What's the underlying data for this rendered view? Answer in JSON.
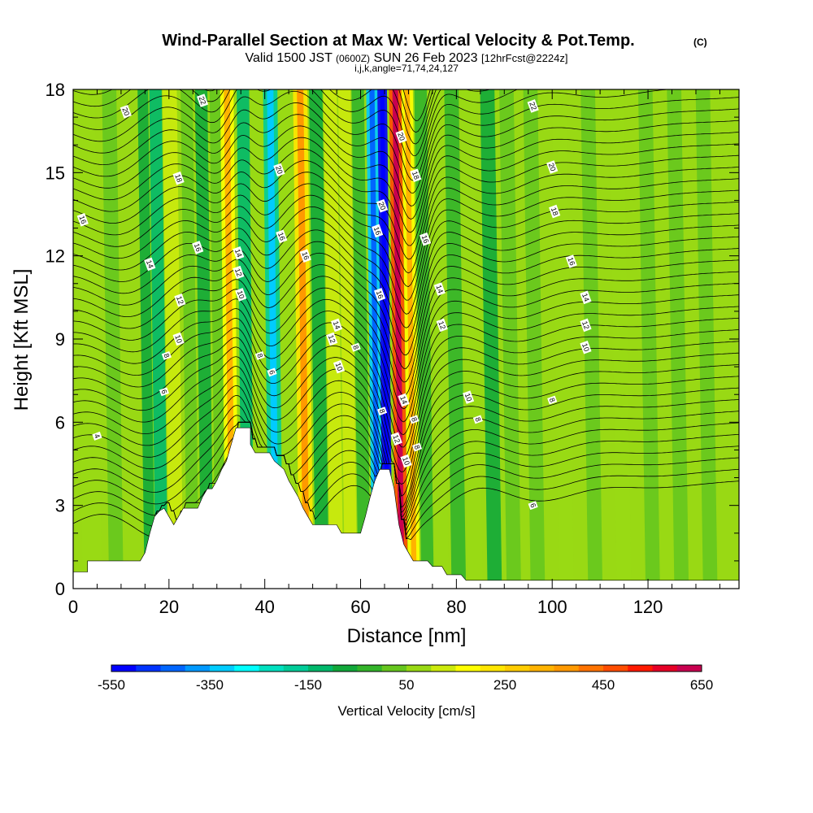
{
  "header": {
    "title": "Wind-Parallel Section at Max W: Vertical Velocity & Pot.Temp.",
    "copyright": "(C)",
    "valid_main": "Valid 1500 JST",
    "valid_utc": "(0600Z)",
    "valid_date": "SUN 26 Feb 2023",
    "forecast": "[12hrFcst@2224z]",
    "indices": "i,j,k,angle=71,74,24,127"
  },
  "chart_data": {
    "type": "heatmap",
    "xlabel": "Distance [nm]",
    "ylabel": "Height [Kft MSL]",
    "xlim": [
      0,
      139
    ],
    "ylim": [
      0,
      18
    ],
    "x_ticks": [
      "0",
      "20",
      "40",
      "60",
      "80",
      "100",
      "120"
    ],
    "y_ticks": [
      "0",
      "3",
      "6",
      "9",
      "12",
      "15",
      "18"
    ],
    "grid": false,
    "colorbar": {
      "label": "Vertical Velocity [cm/s]",
      "min": -550,
      "max": 650,
      "step": 50,
      "tick_labels": [
        "-550",
        "-350",
        "-150",
        "50",
        "250",
        "450",
        "650"
      ],
      "colors": [
        "#0000ff",
        "#0033ff",
        "#0066ff",
        "#0099ff",
        "#00ccff",
        "#00ffff",
        "#00e0c0",
        "#00cc99",
        "#00b86b",
        "#11a83a",
        "#33b42a",
        "#66c61e",
        "#99d914",
        "#ccea0c",
        "#ffff00",
        "#ffe600",
        "#ffcc00",
        "#ffb300",
        "#ff9900",
        "#ff7300",
        "#ff4d00",
        "#ff1a00",
        "#e60026",
        "#c80050",
        "#a80078",
        "#7800a0"
      ]
    },
    "terrain_kft": [
      [
        0,
        0.6
      ],
      [
        3,
        0.6
      ],
      [
        3,
        1.0
      ],
      [
        14,
        1.0
      ],
      [
        15,
        1.3
      ],
      [
        16,
        2.0
      ],
      [
        17,
        2.6
      ],
      [
        18,
        2.8
      ],
      [
        19,
        2.9
      ],
      [
        20,
        2.6
      ],
      [
        21,
        2.3
      ],
      [
        22,
        2.6
      ],
      [
        23,
        2.9
      ],
      [
        26,
        2.9
      ],
      [
        27,
        3.3
      ],
      [
        28,
        3.6
      ],
      [
        29,
        3.6
      ],
      [
        30,
        3.9
      ],
      [
        31,
        4.3
      ],
      [
        32,
        4.6
      ],
      [
        33,
        5.2
      ],
      [
        34,
        5.8
      ],
      [
        37,
        5.8
      ],
      [
        37,
        5.2
      ],
      [
        38,
        4.9
      ],
      [
        41,
        4.9
      ],
      [
        42,
        4.6
      ],
      [
        44,
        4.3
      ],
      [
        45,
        3.9
      ],
      [
        46,
        3.6
      ],
      [
        47,
        3.3
      ],
      [
        48,
        2.9
      ],
      [
        49,
        2.6
      ],
      [
        50,
        2.3
      ],
      [
        55,
        2.3
      ],
      [
        56,
        2.0
      ],
      [
        60,
        2.0
      ],
      [
        61,
        2.6
      ],
      [
        62,
        3.3
      ],
      [
        63,
        3.9
      ],
      [
        64,
        4.3
      ],
      [
        66,
        4.3
      ],
      [
        67,
        3.6
      ],
      [
        68,
        2.3
      ],
      [
        69,
        1.6
      ],
      [
        70,
        1.3
      ],
      [
        71,
        1.0
      ],
      [
        74,
        1.0
      ],
      [
        75,
        0.8
      ],
      [
        77,
        0.8
      ],
      [
        78,
        0.5
      ],
      [
        81,
        0.5
      ],
      [
        82,
        0.3
      ],
      [
        139,
        0.3
      ]
    ],
    "w_bands": [
      {
        "x": 4,
        "w": 4,
        "value": 50
      },
      {
        "x": 9,
        "w": 3,
        "value": 20
      },
      {
        "x": 16,
        "w": 2.2,
        "value": -80
      },
      {
        "x": 18.5,
        "w": 2.6,
        "value": -140
      },
      {
        "x": 21.5,
        "w": 3,
        "value": 120
      },
      {
        "x": 25,
        "w": 2.5,
        "value": 40
      },
      {
        "x": 28,
        "w": 2.6,
        "value": -60
      },
      {
        "x": 31,
        "w": 2.6,
        "value": 30
      },
      {
        "x": 33.2,
        "w": 2.8,
        "value": 170
      },
      {
        "x": 36.5,
        "w": 2.6,
        "value": -110
      },
      {
        "x": 39.5,
        "w": 2.6,
        "value": 50
      },
      {
        "x": 42.3,
        "w": 3,
        "value": -190
      },
      {
        "x": 45.5,
        "w": 2.8,
        "value": 80
      },
      {
        "x": 48.7,
        "w": 3,
        "value": 200
      },
      {
        "x": 52,
        "w": 2.8,
        "value": -60
      },
      {
        "x": 55,
        "w": 2.8,
        "value": 100
      },
      {
        "x": 58,
        "w": 2.6,
        "value": 140
      },
      {
        "x": 60.8,
        "w": 2.6,
        "value": -40
      },
      {
        "x": 63.6,
        "w": 2.4,
        "value": -330
      },
      {
        "x": 65.7,
        "w": 2.0,
        "value": -520
      },
      {
        "x": 68.6,
        "w": 2.6,
        "value": 480
      },
      {
        "x": 71.2,
        "w": 2.4,
        "value": 160
      },
      {
        "x": 74,
        "w": 2.6,
        "value": -20
      },
      {
        "x": 77,
        "w": 2.8,
        "value": 90
      },
      {
        "x": 80.5,
        "w": 3,
        "value": -50
      },
      {
        "x": 84,
        "w": 3,
        "value": 70
      },
      {
        "x": 88,
        "w": 3,
        "value": -80
      },
      {
        "x": 92,
        "w": 3,
        "value": 40
      },
      {
        "x": 97,
        "w": 3,
        "value": 20
      },
      {
        "x": 103,
        "w": 3,
        "value": 60
      },
      {
        "x": 109,
        "w": 3,
        "value": 30
      },
      {
        "x": 115,
        "w": 3,
        "value": 50
      },
      {
        "x": 121,
        "w": 3,
        "value": 20
      },
      {
        "x": 127,
        "w": 3,
        "value": 40
      },
      {
        "x": 133,
        "w": 3,
        "value": 30
      }
    ],
    "contour_labels": [
      {
        "x": 5,
        "y": 5.5,
        "text": "4"
      },
      {
        "x": 19,
        "y": 7.1,
        "text": "6"
      },
      {
        "x": 19.5,
        "y": 8.4,
        "text": "8"
      },
      {
        "x": 22,
        "y": 9.0,
        "text": "10"
      },
      {
        "x": 22.3,
        "y": 10.4,
        "text": "12"
      },
      {
        "x": 16,
        "y": 11.7,
        "text": "14"
      },
      {
        "x": 26,
        "y": 12.3,
        "text": "16"
      },
      {
        "x": 22,
        "y": 14.8,
        "text": "18"
      },
      {
        "x": 11,
        "y": 17.2,
        "text": "20"
      },
      {
        "x": 27,
        "y": 17.6,
        "text": "22"
      },
      {
        "x": 2,
        "y": 13.3,
        "text": "16"
      },
      {
        "x": 34.5,
        "y": 12.1,
        "text": "14"
      },
      {
        "x": 34.5,
        "y": 11.4,
        "text": "12"
      },
      {
        "x": 35,
        "y": 10.6,
        "text": "10"
      },
      {
        "x": 39,
        "y": 8.4,
        "text": "8"
      },
      {
        "x": 41.5,
        "y": 7.8,
        "text": "6"
      },
      {
        "x": 43.5,
        "y": 12.7,
        "text": "16"
      },
      {
        "x": 43,
        "y": 15.1,
        "text": "20"
      },
      {
        "x": 48.5,
        "y": 12.0,
        "text": "16"
      },
      {
        "x": 55,
        "y": 9.5,
        "text": "14"
      },
      {
        "x": 54,
        "y": 9.0,
        "text": "12"
      },
      {
        "x": 59,
        "y": 8.7,
        "text": "8"
      },
      {
        "x": 55.5,
        "y": 8.0,
        "text": "10"
      },
      {
        "x": 64.5,
        "y": 13.8,
        "text": "20"
      },
      {
        "x": 63.5,
        "y": 12.9,
        "text": "16"
      },
      {
        "x": 64,
        "y": 10.6,
        "text": "16"
      },
      {
        "x": 68.5,
        "y": 16.3,
        "text": "20"
      },
      {
        "x": 71.5,
        "y": 14.9,
        "text": "18"
      },
      {
        "x": 73.5,
        "y": 12.6,
        "text": "16"
      },
      {
        "x": 76.5,
        "y": 10.8,
        "text": "14"
      },
      {
        "x": 77,
        "y": 9.5,
        "text": "12"
      },
      {
        "x": 82.5,
        "y": 6.9,
        "text": "10"
      },
      {
        "x": 84.5,
        "y": 6.1,
        "text": "8"
      },
      {
        "x": 64.5,
        "y": 6.4,
        "text": "8"
      },
      {
        "x": 69,
        "y": 6.8,
        "text": "14"
      },
      {
        "x": 71.2,
        "y": 6.1,
        "text": "8"
      },
      {
        "x": 67.5,
        "y": 5.4,
        "text": "12"
      },
      {
        "x": 71.8,
        "y": 5.1,
        "text": "8"
      },
      {
        "x": 69.5,
        "y": 4.6,
        "text": "10"
      },
      {
        "x": 96,
        "y": 17.4,
        "text": "22"
      },
      {
        "x": 100,
        "y": 15.2,
        "text": "20"
      },
      {
        "x": 100.5,
        "y": 13.6,
        "text": "18"
      },
      {
        "x": 104,
        "y": 11.8,
        "text": "16"
      },
      {
        "x": 107,
        "y": 10.5,
        "text": "14"
      },
      {
        "x": 107,
        "y": 9.5,
        "text": "12"
      },
      {
        "x": 107,
        "y": 8.7,
        "text": "10"
      },
      {
        "x": 100,
        "y": 6.8,
        "text": "8"
      },
      {
        "x": 96,
        "y": 3.0,
        "text": "6"
      }
    ]
  }
}
